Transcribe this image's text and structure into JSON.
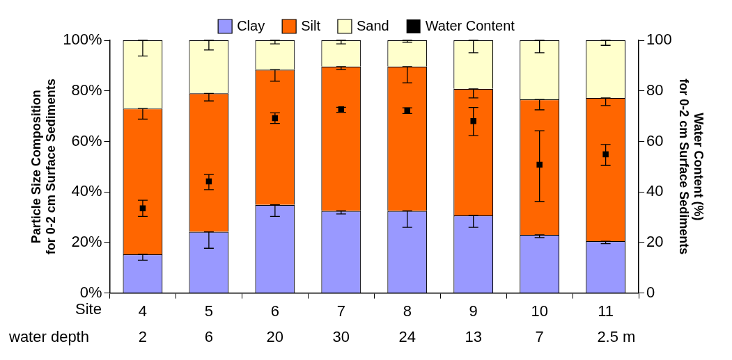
{
  "chart_data": {
    "type": "bar",
    "stacked": true,
    "categories": [
      "4",
      "5",
      "6",
      "7",
      "8",
      "9",
      "10",
      "11"
    ],
    "xlabel": "Site",
    "ylabel": "Particle Size Composition\nfor 0-2 cm Surface Sediments",
    "y2label": "Water Content (%)\nfor 0-2 cm Surface Sediments",
    "ylim": [
      0,
      100
    ],
    "yticks": [
      {
        "value": 0,
        "label": "0%"
      },
      {
        "value": 20,
        "label": "20%"
      },
      {
        "value": 40,
        "label": "40%"
      },
      {
        "value": 60,
        "label": "60%"
      },
      {
        "value": 80,
        "label": "80%"
      },
      {
        "value": 100,
        "label": "100%"
      }
    ],
    "y2lim": [
      0,
      100
    ],
    "y2ticks": [
      0,
      20,
      40,
      60,
      80,
      100
    ],
    "grid": false,
    "legend": "top",
    "series": [
      {
        "name": "Clay",
        "color": "#9999ff",
        "values": [
          15.3,
          24.2,
          34.9,
          32.5,
          32.5,
          30.7,
          23.0,
          20.5
        ],
        "errors": [
          [
            13.0,
            15.3
          ],
          [
            17.7,
            24.2
          ],
          [
            30.3,
            34.9
          ],
          [
            31.3,
            32.5
          ],
          [
            26.0,
            32.5
          ],
          [
            26.0,
            30.7
          ],
          [
            21.9,
            23.0
          ],
          [
            19.5,
            20.5
          ]
        ]
      },
      {
        "name": "Silt",
        "color": "#ff6600",
        "values": [
          57.7,
          54.8,
          53.5,
          57.1,
          57.1,
          50.1,
          53.6,
          56.7
        ],
        "errors": [
          [
            68.8,
            73.0
          ],
          [
            76.0,
            79.0
          ],
          [
            83.8,
            88.4
          ],
          [
            88.4,
            89.6
          ],
          [
            83.2,
            89.6
          ],
          [
            77.2,
            80.8
          ],
          [
            72.5,
            76.6
          ],
          [
            74.2,
            77.2
          ]
        ]
      },
      {
        "name": "Sand",
        "color": "#ffffcc",
        "values": [
          27.0,
          21.0,
          11.6,
          10.4,
          10.4,
          19.2,
          23.4,
          22.8
        ],
        "errors": [
          [
            93.8,
            100
          ],
          [
            96.2,
            100
          ],
          [
            98.6,
            100
          ],
          [
            98.6,
            100
          ],
          [
            99.2,
            100
          ],
          [
            95.1,
            100
          ],
          [
            95.1,
            100
          ],
          [
            98.0,
            100
          ]
        ]
      },
      {
        "name": "Water Content",
        "type": "scatter",
        "axis": "y2",
        "marker": "square",
        "color": "#000000",
        "x": [
          "4",
          "5",
          "6",
          "7",
          "8",
          "9",
          "10",
          "11"
        ],
        "values": [
          33.5,
          44.2,
          69.2,
          72.7,
          72.2,
          68.0,
          50.8,
          54.9
        ],
        "errors": [
          [
            30.3,
            36.7
          ],
          [
            40.9,
            46.9
          ],
          [
            67.1,
            71.3
          ],
          [
            71.5,
            73.5
          ],
          [
            71.0,
            73.3
          ],
          [
            62.3,
            73.4
          ],
          [
            36.2,
            64.2
          ],
          [
            50.5,
            58.8
          ]
        ]
      }
    ],
    "annotations": [
      "water depth",
      "2",
      "6",
      "20",
      "30",
      "24",
      "13",
      "7",
      "2.5 m"
    ]
  }
}
